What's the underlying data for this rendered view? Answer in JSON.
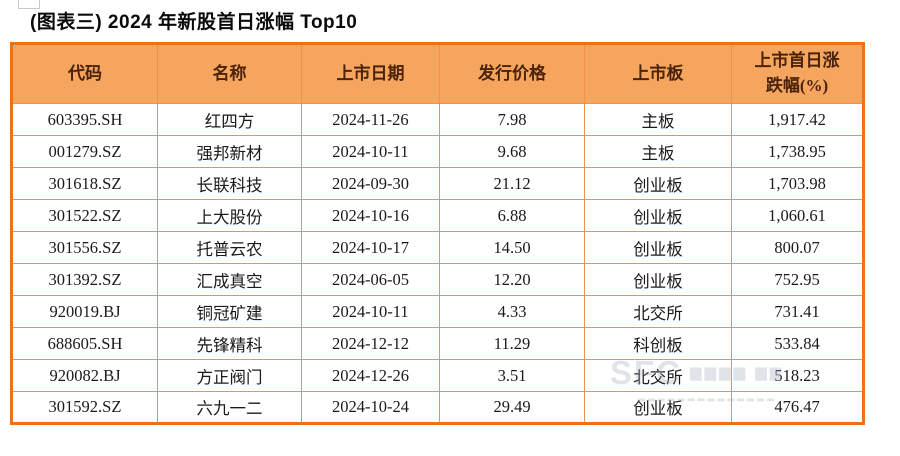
{
  "page": {
    "title": "(图表三) 2024 年新股首日涨幅 Top10"
  },
  "chart_data": {
    "type": "table",
    "figure_label": "(图表三)",
    "title": "2024 年新股首日涨幅 Top10",
    "columns": [
      "代码",
      "名称",
      "上市日期",
      "发行价格",
      "上市板",
      "上市首日涨跌幅(%)"
    ],
    "rows": [
      [
        "603395.SH",
        "红四方",
        "2024-11-26",
        "7.98",
        "主板",
        "1,917.42"
      ],
      [
        "001279.SZ",
        "强邦新材",
        "2024-10-11",
        "9.68",
        "主板",
        "1,738.95"
      ],
      [
        "301618.SZ",
        "长联科技",
        "2024-09-30",
        "21.12",
        "创业板",
        "1,703.98"
      ],
      [
        "301522.SZ",
        "上大股份",
        "2024-10-16",
        "6.88",
        "创业板",
        "1,060.61"
      ],
      [
        "301556.SZ",
        "托普云农",
        "2024-10-17",
        "14.50",
        "创业板",
        "800.07"
      ],
      [
        "301392.SZ",
        "汇成真空",
        "2024-06-05",
        "12.20",
        "创业板",
        "752.95"
      ],
      [
        "920019.BJ",
        "铜冠矿建",
        "2024-10-11",
        "4.33",
        "北交所",
        "731.41"
      ],
      [
        "688605.SH",
        "先锋精科",
        "2024-12-12",
        "11.29",
        "科创板",
        "533.84"
      ],
      [
        "920082.BJ",
        "方正阀门",
        "2024-12-26",
        "3.51",
        "北交所",
        "518.23"
      ],
      [
        "301592.SZ",
        "六九一二",
        "2024-10-24",
        "29.49",
        "创业板",
        "476.47"
      ]
    ]
  },
  "watermark": {
    "logo": "SFC",
    "blocks_top": "▆▆▆▆ ▆▆",
    "blocks_bottom": "▂▂▂▂▂▂▂▂▂▂▂▂▂▂"
  },
  "colors": {
    "header_bg": "#F6A55F",
    "header_text": "#4A2309",
    "border_outer": "#E8731A",
    "border_inner": "#ED9249",
    "cell_text": "#1A1A1A",
    "title_text": "#0B0B0B",
    "watermark_color": "#9AA6B2"
  }
}
